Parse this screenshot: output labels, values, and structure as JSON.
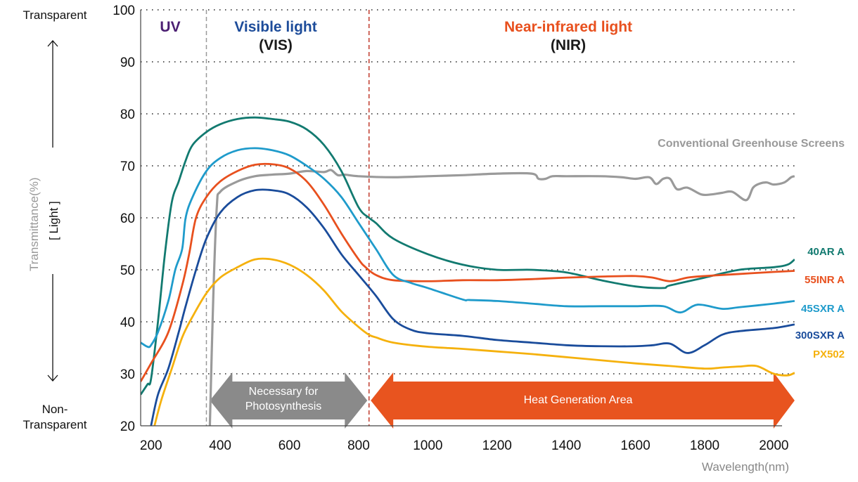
{
  "chart_data": {
    "type": "line",
    "title": "",
    "xlabel": "Wavelength(nm)",
    "ylabel": "Transmittance(%)",
    "ylabel_sub": "[ Light ]",
    "xlim": [
      170,
      2060
    ],
    "ylim": [
      20,
      100
    ],
    "x_ticks": [
      200,
      400,
      600,
      800,
      1000,
      1200,
      1400,
      1600,
      1800,
      2000
    ],
    "y_ticks": [
      20,
      30,
      40,
      50,
      60,
      70,
      80,
      90,
      100
    ],
    "grid": "horizontal-dotted",
    "top_label": "Transparent",
    "bottom_label": "Non-Transparent",
    "regions": [
      {
        "name": "UV",
        "sub": "",
        "x_from": 170,
        "x_to": 350,
        "color": "#4b1f72"
      },
      {
        "name": "Visible light",
        "sub": "(VIS)",
        "x_from": 350,
        "x_to": 800,
        "color": "#1d4c9a"
      },
      {
        "name": "Near-infrared light",
        "sub": "(NIR)",
        "x_from": 800,
        "x_to": 2060,
        "color": "#e8501e"
      }
    ],
    "boundaries": [
      {
        "x": 360,
        "color": "#999999"
      },
      {
        "x": 830,
        "color": "#c0392b"
      }
    ],
    "arrows": [
      {
        "label_line1": "Necessary for",
        "label_line2": "Photosynthesis",
        "x_from": 370,
        "x_to": 825,
        "color": "#8a8a8a"
      },
      {
        "label_line1": "Heat Generation Area",
        "label_line2": "",
        "x_from": 835,
        "x_to": 2060,
        "color": "#e8541f"
      }
    ],
    "series": [
      {
        "name": "Conventional Greenhouse Screens",
        "color": "#9a9a9a",
        "x": [
          370,
          380,
          390,
          400,
          450,
          500,
          550,
          600,
          650,
          700,
          720,
          740,
          760,
          800,
          900,
          1000,
          1100,
          1200,
          1300,
          1320,
          1340,
          1360,
          1400,
          1500,
          1560,
          1600,
          1640,
          1660,
          1680,
          1700,
          1720,
          1750,
          1790,
          1820,
          1850,
          1880,
          1920,
          1940,
          1960,
          1980,
          2000,
          2030,
          2050,
          2060
        ],
        "y": [
          20,
          45,
          62,
          65,
          67,
          68,
          68.3,
          68.5,
          69,
          68.8,
          69.2,
          68.2,
          68.3,
          68,
          67.8,
          68,
          68.2,
          68.5,
          68.5,
          67.5,
          67.5,
          68,
          68,
          68,
          67.8,
          67.5,
          67.8,
          66.5,
          67.5,
          67.5,
          65.5,
          65.8,
          64.5,
          64.5,
          64.8,
          65,
          63.4,
          65.8,
          66.6,
          66.8,
          66.4,
          66.8,
          67.8,
          68
        ]
      },
      {
        "name": "40AR A",
        "color": "#127a70",
        "x": [
          170,
          190,
          200,
          220,
          240,
          260,
          280,
          300,
          320,
          360,
          400,
          450,
          500,
          550,
          600,
          650,
          700,
          750,
          800,
          830,
          850,
          900,
          1000,
          1100,
          1200,
          1300,
          1400,
          1500,
          1600,
          1680,
          1700,
          1800,
          1900,
          2000,
          2040,
          2060
        ],
        "y": [
          26,
          28,
          29,
          40,
          53,
          63,
          67,
          71,
          74,
          76.5,
          78,
          79,
          79.3,
          79,
          78.5,
          77,
          74,
          69,
          62,
          60,
          59,
          56,
          53,
          51,
          50,
          50,
          49.5,
          48,
          46.8,
          46.5,
          47,
          48.5,
          50,
          50.5,
          51,
          52
        ]
      },
      {
        "name": "55INR A",
        "color": "#e8501e",
        "x": [
          170,
          200,
          250,
          290,
          310,
          330,
          360,
          400,
          450,
          500,
          550,
          600,
          650,
          700,
          750,
          800,
          820,
          850,
          900,
          1000,
          1100,
          1200,
          1300,
          1400,
          1500,
          1600,
          1650,
          1700,
          1750,
          1800,
          1900,
          2000,
          2060
        ],
        "y": [
          28.5,
          32,
          38,
          47,
          53,
          60,
          64,
          67,
          69,
          70.2,
          70.3,
          69.5,
          67,
          62.5,
          57,
          52,
          50.5,
          49,
          48,
          47.8,
          48,
          48,
          48.2,
          48.5,
          48.7,
          48.8,
          48.5,
          47.8,
          48.5,
          48.8,
          49.2,
          49.6,
          49.8
        ]
      },
      {
        "name": "45SXR A",
        "color": "#1f9bcb",
        "x": [
          170,
          190,
          200,
          220,
          250,
          270,
          290,
          300,
          320,
          360,
          400,
          450,
          500,
          550,
          600,
          650,
          700,
          750,
          800,
          850,
          900,
          950,
          1000,
          1100,
          1120,
          1200,
          1300,
          1400,
          1500,
          1600,
          1680,
          1730,
          1780,
          1850,
          1900,
          2000,
          2060
        ],
        "y": [
          36,
          35.2,
          35.5,
          38,
          44,
          50,
          54,
          60,
          64,
          69,
          71.5,
          73,
          73.4,
          73,
          72,
          70,
          67.5,
          64,
          59,
          54,
          49,
          47.5,
          46.5,
          44.3,
          44.2,
          44,
          43.5,
          43,
          43,
          43,
          43,
          41.8,
          43.3,
          42.5,
          42.8,
          43.5,
          44
        ]
      },
      {
        "name": "300SXR A",
        "color": "#1a4c9b",
        "x": [
          200,
          220,
          250,
          280,
          300,
          330,
          360,
          400,
          450,
          500,
          550,
          600,
          650,
          700,
          750,
          800,
          850,
          900,
          950,
          1000,
          1100,
          1200,
          1300,
          1400,
          1500,
          1600,
          1650,
          1700,
          1750,
          1800,
          1850,
          1900,
          2000,
          2060
        ],
        "y": [
          20,
          26,
          31,
          38,
          43,
          50,
          56,
          61,
          64,
          65.3,
          65.3,
          64.5,
          62,
          58,
          53,
          49,
          45,
          40.5,
          38.5,
          37.8,
          37.3,
          36.5,
          36,
          35.5,
          35.3,
          35.3,
          35.5,
          35.8,
          34,
          35.5,
          37.5,
          38.2,
          38.8,
          39.5
        ]
      },
      {
        "name": "PX502",
        "color": "#f5b10d",
        "x": [
          210,
          230,
          260,
          290,
          320,
          360,
          400,
          450,
          500,
          550,
          600,
          650,
          700,
          750,
          800,
          830,
          850,
          900,
          1000,
          1100,
          1200,
          1300,
          1400,
          1500,
          1600,
          1700,
          1800,
          1850,
          1900,
          1950,
          2000,
          2040,
          2060
        ],
        "y": [
          20,
          25,
          31,
          37,
          41,
          45.5,
          48.5,
          50.5,
          52,
          52,
          51,
          49,
          46,
          42,
          39,
          37.5,
          37,
          36,
          35.2,
          34.8,
          34.3,
          33.8,
          33.2,
          32.6,
          32,
          31.5,
          31,
          31.2,
          31.4,
          31.5,
          30,
          29.7,
          30.2
        ]
      }
    ]
  }
}
